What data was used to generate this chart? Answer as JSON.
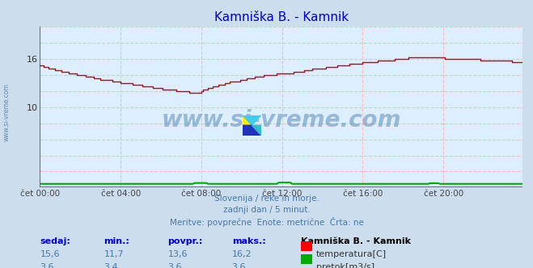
{
  "title": "Kamniška B. - Kamnik",
  "title_color": "#0000cc",
  "bg_color": "#ccdded",
  "plot_bg_color": "#ddeeff",
  "grid_color": "#ffbbbb",
  "temp_color": "#cc0000",
  "flow_color": "#00aa00",
  "blue_axis_color": "#4444cc",
  "red_arrow_color": "#cc0000",
  "watermark_text": "www.si-vreme.com",
  "watermark_color": "#4477aa",
  "watermark_alpha": 0.45,
  "subtitle_lines": [
    "Slovenija / reke in morje.",
    "zadnji dan / 5 minut.",
    "Meritve: povprečne  Enote: metrične  Črta: ne"
  ],
  "subtitle_color": "#4477aa",
  "footer_label_color": "#0000cc",
  "footer_value_color": "#4477aa",
  "footer_labels": [
    "sedaj:",
    "min.:",
    "povpr.:",
    "maks.:"
  ],
  "footer_temp_values": [
    "15,6",
    "11,7",
    "13,6",
    "16,2"
  ],
  "footer_flow_values": [
    "3,6",
    "3,4",
    "3,6",
    "3,6"
  ],
  "station_name": "Kamniška B. - Kamnik",
  "legend_temp": "temperatura[C]",
  "legend_flow": "pretok[m3/s]",
  "sidebar_text": "www.si-vreme.com",
  "sidebar_color": "#4477aa",
  "ylim": [
    0,
    20
  ],
  "ytick_vals": [
    10,
    16
  ],
  "xtick_positions": [
    0,
    48,
    96,
    144,
    192,
    240
  ],
  "xtick_labels": [
    "čet 00:00",
    "čet 04:00",
    "čet 08:00",
    "čet 12:00",
    "čet 16:00",
    "čet 20:00"
  ]
}
